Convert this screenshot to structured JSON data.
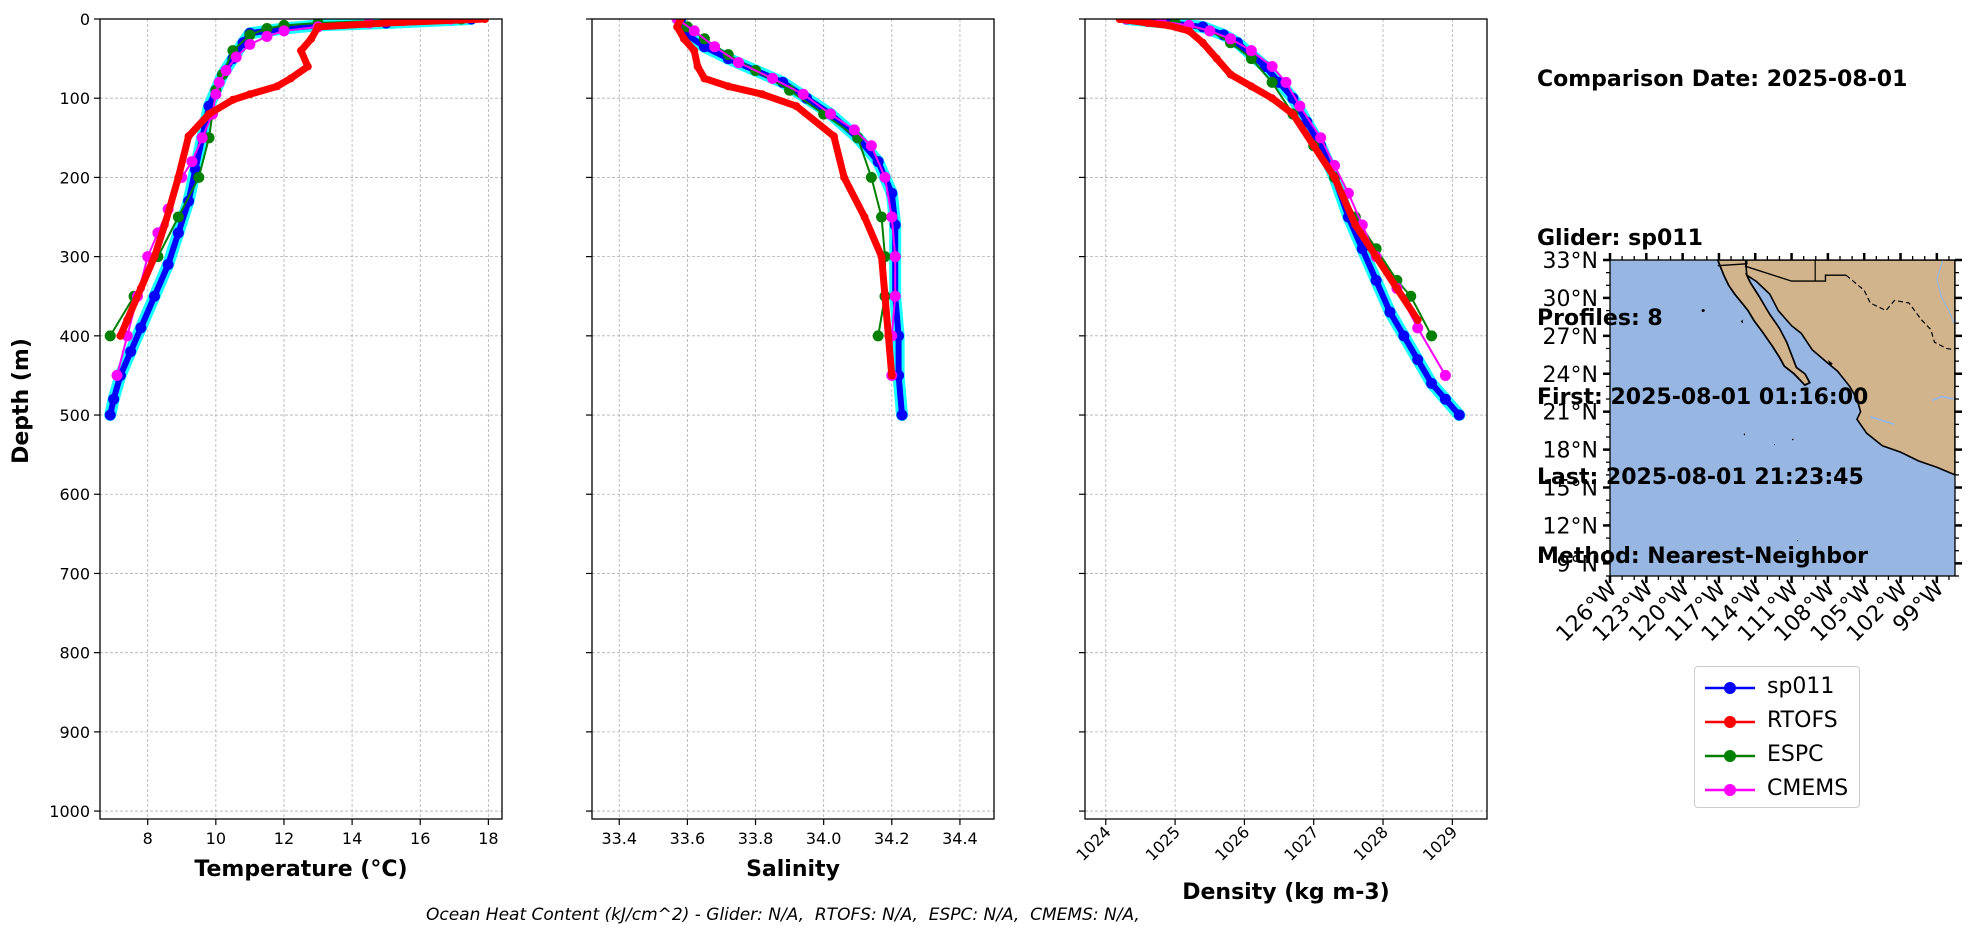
{
  "info": {
    "comparison_date": "Comparison Date: 2025-08-01",
    "glider": "Glider: sp011",
    "profiles": "Profiles: 8",
    "first": "First: 2025-08-01 01:16:00",
    "last": "Last: 2025-08-01 21:23:45",
    "method": "Method: Nearest-Neighbor"
  },
  "footer": "Ocean Heat Content (kJ/cm^2) - Glider: N/A,  RTOFS: N/A,  ESPC: N/A,  CMEMS: N/A,",
  "colors": {
    "sp011": "#0000ff",
    "sp011_fill": "#00ffff",
    "RTOFS": "#ff0000",
    "ESPC": "#008000",
    "CMEMS": "#ff00ff",
    "ocean": "#97b6e1",
    "land": "#d2b48c",
    "grid": "#b0b0b0"
  },
  "legend": [
    {
      "name": "sp011",
      "color": "#0000ff"
    },
    {
      "name": "RTOFS",
      "color": "#ff0000"
    },
    {
      "name": "ESPC",
      "color": "#008000"
    },
    {
      "name": "CMEMS",
      "color": "#ff00ff"
    }
  ],
  "chart_data": [
    {
      "type": "line",
      "ylabel": "Depth (m)",
      "xlabel": "Temperature (°C)",
      "xlim": [
        6.6,
        18.4
      ],
      "ylim": [
        1010,
        0
      ],
      "x_ticks": [
        8,
        10,
        12,
        14,
        16,
        18
      ],
      "y_ticks": [
        0,
        100,
        200,
        300,
        400,
        500,
        600,
        700,
        800,
        900,
        1000
      ],
      "grid": true,
      "series": [
        {
          "name": "sp011",
          "points": [
            [
              17.5,
              0
            ],
            [
              15,
              5
            ],
            [
              13,
              8
            ],
            [
              12,
              12
            ],
            [
              11,
              18
            ],
            [
              10.8,
              30
            ],
            [
              10.5,
              50
            ],
            [
              10.2,
              70
            ],
            [
              10.0,
              90
            ],
            [
              9.8,
              110
            ],
            [
              9.6,
              150
            ],
            [
              9.4,
              190
            ],
            [
              9.2,
              230
            ],
            [
              8.9,
              270
            ],
            [
              8.6,
              310
            ],
            [
              8.2,
              350
            ],
            [
              7.8,
              390
            ],
            [
              7.5,
              420
            ],
            [
              7.2,
              450
            ],
            [
              7.0,
              480
            ],
            [
              6.9,
              500
            ]
          ]
        },
        {
          "name": "RTOFS",
          "points": [
            [
              17.9,
              0
            ],
            [
              15,
              5
            ],
            [
              13,
              10
            ],
            [
              12.8,
              25
            ],
            [
              12.5,
              40
            ],
            [
              12.7,
              60
            ],
            [
              12.2,
              75
            ],
            [
              11.8,
              85
            ],
            [
              11.0,
              95
            ],
            [
              10.5,
              102
            ],
            [
              9.8,
              120
            ],
            [
              9.2,
              148
            ],
            [
              8.9,
              200
            ],
            [
              8.5,
              260
            ],
            [
              8.2,
              300
            ],
            [
              7.8,
              340
            ],
            [
              7.4,
              380
            ],
            [
              7.2,
              400
            ]
          ]
        },
        {
          "name": "ESPC",
          "points": [
            [
              17.2,
              0
            ],
            [
              15,
              2
            ],
            [
              13,
              5
            ],
            [
              12,
              8
            ],
            [
              11.5,
              12
            ],
            [
              11.0,
              20
            ],
            [
              10.5,
              40
            ],
            [
              10.2,
              70
            ],
            [
              10.0,
              90
            ],
            [
              9.9,
              120
            ],
            [
              9.8,
              150
            ],
            [
              9.5,
              200
            ],
            [
              8.9,
              250
            ],
            [
              8.3,
              300
            ],
            [
              7.6,
              350
            ],
            [
              6.9,
              400
            ]
          ]
        },
        {
          "name": "CMEMS",
          "points": [
            [
              16.9,
              0
            ],
            [
              15.5,
              2
            ],
            [
              14.5,
              5
            ],
            [
              13,
              10
            ],
            [
              12,
              15
            ],
            [
              11.5,
              22
            ],
            [
              11.0,
              32
            ],
            [
              10.6,
              48
            ],
            [
              10.3,
              65
            ],
            [
              10.1,
              80
            ],
            [
              10.0,
              95
            ],
            [
              9.9,
              120
            ],
            [
              9.6,
              150
            ],
            [
              9.3,
              180
            ],
            [
              9.0,
              200
            ],
            [
              8.6,
              240
            ],
            [
              8.3,
              270
            ],
            [
              8.0,
              300
            ],
            [
              7.7,
              350
            ],
            [
              7.4,
              400
            ],
            [
              7.1,
              450
            ]
          ]
        }
      ]
    },
    {
      "type": "line",
      "xlabel": "Salinity",
      "xlim": [
        33.32,
        34.5
      ],
      "ylim": [
        1010,
        0
      ],
      "x_ticks": [
        33.4,
        33.6,
        33.8,
        34.0,
        34.2,
        34.4
      ],
      "y_ticks": [
        0,
        100,
        200,
        300,
        400,
        500,
        600,
        700,
        800,
        900,
        1000
      ],
      "grid": true,
      "series": [
        {
          "name": "sp011",
          "points": [
            [
              33.58,
              0
            ],
            [
              33.58,
              10
            ],
            [
              33.6,
              20
            ],
            [
              33.65,
              35
            ],
            [
              33.72,
              50
            ],
            [
              33.8,
              65
            ],
            [
              33.88,
              80
            ],
            [
              33.95,
              100
            ],
            [
              34.02,
              120
            ],
            [
              34.1,
              150
            ],
            [
              34.16,
              180
            ],
            [
              34.2,
              220
            ],
            [
              34.21,
              260
            ],
            [
              34.21,
              300
            ],
            [
              34.21,
              350
            ],
            [
              34.22,
              400
            ],
            [
              34.22,
              450
            ],
            [
              34.23,
              500
            ]
          ]
        },
        {
          "name": "RTOFS",
          "points": [
            [
              33.58,
              0
            ],
            [
              33.57,
              10
            ],
            [
              33.59,
              25
            ],
            [
              33.62,
              40
            ],
            [
              33.63,
              60
            ],
            [
              33.65,
              75
            ],
            [
              33.72,
              85
            ],
            [
              33.82,
              95
            ],
            [
              33.92,
              110
            ],
            [
              34.03,
              148
            ],
            [
              34.06,
              200
            ],
            [
              34.12,
              250
            ],
            [
              34.17,
              300
            ],
            [
              34.18,
              350
            ],
            [
              34.19,
              400
            ],
            [
              34.2,
              450
            ]
          ]
        },
        {
          "name": "ESPC",
          "points": [
            [
              33.57,
              0
            ],
            [
              33.6,
              10
            ],
            [
              33.65,
              25
            ],
            [
              33.72,
              45
            ],
            [
              33.8,
              65
            ],
            [
              33.9,
              90
            ],
            [
              34.0,
              120
            ],
            [
              34.1,
              150
            ],
            [
              34.14,
              200
            ],
            [
              34.17,
              250
            ],
            [
              34.18,
              300
            ],
            [
              34.18,
              350
            ],
            [
              34.16,
              400
            ]
          ]
        },
        {
          "name": "CMEMS",
          "points": [
            [
              33.57,
              0
            ],
            [
              33.62,
              15
            ],
            [
              33.68,
              35
            ],
            [
              33.75,
              55
            ],
            [
              33.85,
              75
            ],
            [
              33.94,
              95
            ],
            [
              34.02,
              120
            ],
            [
              34.09,
              140
            ],
            [
              34.14,
              160
            ],
            [
              34.18,
              200
            ],
            [
              34.2,
              250
            ],
            [
              34.21,
              300
            ],
            [
              34.21,
              350
            ],
            [
              34.2,
              400
            ],
            [
              34.2,
              450
            ]
          ]
        }
      ]
    },
    {
      "type": "line",
      "xlabel": "Density (kg m-3)",
      "xlim": [
        1023.7,
        1029.5
      ],
      "ylim": [
        1010,
        0
      ],
      "x_ticks": [
        1024,
        1025,
        1026,
        1027,
        1028,
        1029
      ],
      "y_ticks": [
        0,
        100,
        200,
        300,
        400,
        500,
        600,
        700,
        800,
        900,
        1000
      ],
      "grid": true,
      "series": [
        {
          "name": "sp011",
          "points": [
            [
              1024.3,
              0
            ],
            [
              1024.9,
              5
            ],
            [
              1025.4,
              10
            ],
            [
              1025.7,
              20
            ],
            [
              1025.9,
              30
            ],
            [
              1026.1,
              45
            ],
            [
              1026.3,
              60
            ],
            [
              1026.5,
              80
            ],
            [
              1026.7,
              100
            ],
            [
              1026.9,
              130
            ],
            [
              1027.1,
              160
            ],
            [
              1027.3,
              200
            ],
            [
              1027.5,
              250
            ],
            [
              1027.7,
              290
            ],
            [
              1027.9,
              330
            ],
            [
              1028.1,
              370
            ],
            [
              1028.3,
              400
            ],
            [
              1028.5,
              430
            ],
            [
              1028.7,
              460
            ],
            [
              1028.9,
              480
            ],
            [
              1029.1,
              500
            ]
          ]
        },
        {
          "name": "RTOFS",
          "points": [
            [
              1024.2,
              0
            ],
            [
              1024.6,
              5
            ],
            [
              1024.9,
              8
            ],
            [
              1025.2,
              15
            ],
            [
              1025.4,
              30
            ],
            [
              1025.6,
              50
            ],
            [
              1025.8,
              70
            ],
            [
              1026.1,
              85
            ],
            [
              1026.4,
              100
            ],
            [
              1026.7,
              120
            ],
            [
              1027.0,
              160
            ],
            [
              1027.3,
              200
            ],
            [
              1027.6,
              260
            ],
            [
              1027.9,
              300
            ],
            [
              1028.2,
              340
            ],
            [
              1028.5,
              380
            ]
          ]
        },
        {
          "name": "ESPC",
          "points": [
            [
              1024.4,
              0
            ],
            [
              1025.0,
              5
            ],
            [
              1025.5,
              15
            ],
            [
              1025.8,
              30
            ],
            [
              1026.1,
              50
            ],
            [
              1026.4,
              80
            ],
            [
              1026.7,
              120
            ],
            [
              1027.0,
              160
            ],
            [
              1027.3,
              200
            ],
            [
              1027.6,
              250
            ],
            [
              1027.9,
              290
            ],
            [
              1028.2,
              330
            ],
            [
              1028.4,
              350
            ],
            [
              1028.7,
              400
            ]
          ]
        },
        {
          "name": "CMEMS",
          "points": [
            [
              1024.3,
              0
            ],
            [
              1024.8,
              3
            ],
            [
              1025.2,
              8
            ],
            [
              1025.5,
              15
            ],
            [
              1025.8,
              25
            ],
            [
              1026.1,
              40
            ],
            [
              1026.4,
              60
            ],
            [
              1026.6,
              80
            ],
            [
              1026.8,
              110
            ],
            [
              1027.1,
              150
            ],
            [
              1027.3,
              185
            ],
            [
              1027.5,
              220
            ],
            [
              1027.7,
              260
            ],
            [
              1027.9,
              300
            ],
            [
              1028.2,
              340
            ],
            [
              1028.5,
              390
            ],
            [
              1028.9,
              450
            ]
          ]
        }
      ]
    }
  ],
  "map": {
    "lon_ticks": [
      "126°W",
      "123°W",
      "120°W",
      "117°W",
      "114°W",
      "111°W",
      "108°W",
      "105°W",
      "102°W",
      "99°W"
    ],
    "lat_ticks": [
      "33°N",
      "30°N",
      "27°N",
      "24°N",
      "21°N",
      "18°N",
      "15°N",
      "12°N",
      "9°N"
    ],
    "lon_range": [
      -126,
      -97.5
    ],
    "lat_range": [
      8,
      33
    ]
  }
}
